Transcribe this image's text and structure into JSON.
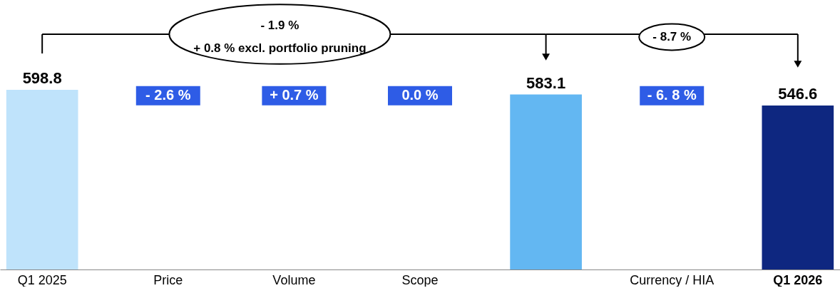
{
  "chart_data": {
    "type": "bar",
    "categories": [
      "Q1 2025",
      "Price",
      "Volume",
      "Scope",
      null,
      "Currency / HIA",
      "Q1 2026"
    ],
    "values": [
      598.8,
      null,
      null,
      null,
      583.1,
      null,
      546.6
    ],
    "colors": [
      "#bfe3fb",
      null,
      null,
      null,
      "#63b7f2",
      null,
      "#0e2780"
    ],
    "data_labels": true,
    "grid": false,
    "annotations": [
      "- 1.9 %",
      "+ 0.8 % excl. portfolio pruning",
      "- 8.7 %",
      "- 2.6 %",
      "+ 0.7 %",
      "0.0 %",
      "- 6. 8 %"
    ]
  }
}
